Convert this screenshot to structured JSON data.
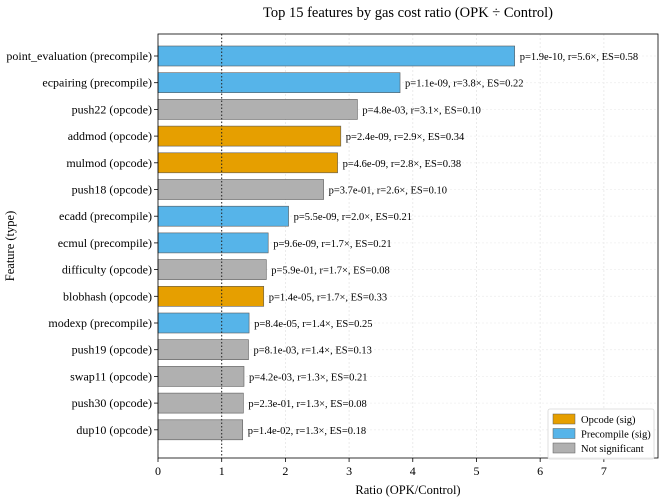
{
  "chart_data": {
    "type": "bar",
    "orientation": "horizontal",
    "title": "Top 15 features by gas cost ratio (OPK ÷ Control)",
    "xlabel": "Ratio (OPK/Control)",
    "ylabel": "Feature (type)",
    "xlim": [
      0,
      7.85
    ],
    "xticks": [
      "0",
      "1",
      "2",
      "3",
      "4",
      "5",
      "6",
      "7"
    ],
    "reference_line": 1,
    "grid": true,
    "legend": {
      "position": "bottom-right",
      "entries": [
        {
          "key": "opcode_sig",
          "label": "Opcode (sig)",
          "color": "#E69F00"
        },
        {
          "key": "precompile_sig",
          "label": "Precompile (sig)",
          "color": "#56B4E9"
        },
        {
          "key": "not_sig",
          "label": "Not significant",
          "color": "#B0B0B0"
        }
      ]
    },
    "bars": [
      {
        "label": "point_evaluation (precompile)",
        "value": 5.6,
        "group": "precompile_sig",
        "annotation": "p=1.9e-10, r=5.6×, ES=0.58"
      },
      {
        "label": "ecpairing (precompile)",
        "value": 3.8,
        "group": "precompile_sig",
        "annotation": "p=1.1e-09, r=3.8×, ES=0.22"
      },
      {
        "label": "push22 (opcode)",
        "value": 3.13,
        "group": "not_sig",
        "annotation": "p=4.8e-03, r=3.1×, ES=0.10"
      },
      {
        "label": "addmod (opcode)",
        "value": 2.87,
        "group": "opcode_sig",
        "annotation": "p=2.4e-09, r=2.9×, ES=0.34"
      },
      {
        "label": "mulmod (opcode)",
        "value": 2.82,
        "group": "opcode_sig",
        "annotation": "p=4.6e-09, r=2.8×, ES=0.38"
      },
      {
        "label": "push18 (opcode)",
        "value": 2.6,
        "group": "not_sig",
        "annotation": "p=3.7e-01, r=2.6×, ES=0.10"
      },
      {
        "label": "ecadd (precompile)",
        "value": 2.05,
        "group": "precompile_sig",
        "annotation": "p=5.5e-09, r=2.0×, ES=0.21"
      },
      {
        "label": "ecmul (precompile)",
        "value": 1.73,
        "group": "precompile_sig",
        "annotation": "p=9.6e-09, r=1.7×, ES=0.21"
      },
      {
        "label": "difficulty (opcode)",
        "value": 1.7,
        "group": "not_sig",
        "annotation": "p=5.9e-01, r=1.7×, ES=0.08"
      },
      {
        "label": "blobhash (opcode)",
        "value": 1.66,
        "group": "opcode_sig",
        "annotation": "p=1.4e-05, r=1.7×, ES=0.33"
      },
      {
        "label": "modexp (precompile)",
        "value": 1.43,
        "group": "precompile_sig",
        "annotation": "p=8.4e-05, r=1.4×, ES=0.25"
      },
      {
        "label": "push19 (opcode)",
        "value": 1.42,
        "group": "not_sig",
        "annotation": "p=8.1e-03, r=1.4×, ES=0.13"
      },
      {
        "label": "swap11 (opcode)",
        "value": 1.35,
        "group": "not_sig",
        "annotation": "p=4.2e-03, r=1.3×, ES=0.21"
      },
      {
        "label": "push30 (opcode)",
        "value": 1.34,
        "group": "not_sig",
        "annotation": "p=2.3e-01, r=1.3×, ES=0.08"
      },
      {
        "label": "dup10 (opcode)",
        "value": 1.33,
        "group": "not_sig",
        "annotation": "p=1.4e-02, r=1.3×, ES=0.18"
      }
    ]
  }
}
